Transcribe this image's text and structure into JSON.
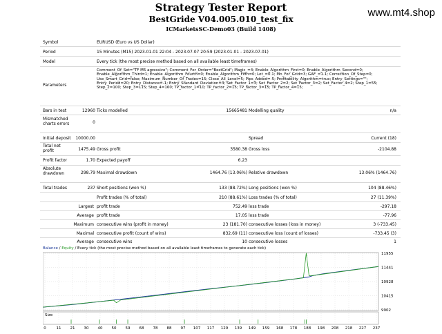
{
  "header": {
    "title": "Strategy Tester Report",
    "ea": "BestGride V04.005.010_test_fix",
    "server": "ICMarketsSC-Demo03 (Build 1408)",
    "site": "www.mt4.shop"
  },
  "info": {
    "symbol_label": "Symbol",
    "symbol_value": "EURUSD (Euro vs US Dollar)",
    "period_label": "Period",
    "period_value": "15 Minutes (M15) 2023.01.01 22:04 - 2023.07.07 20:59 (2023.01.01 - 2023.07.01)",
    "model_label": "Model",
    "model_value": "Every tick (the most precise method based on all available least timeframes)",
    "params_label": "Parameters",
    "params_value": "Comment_Of_Set=\"TF M5 agressive\"; Comment_For_Order=\"BestGrid\"; Magic_=4; Enable_Algorithm_First=0; Enable_Algorithm_Second=0; Enable_Algorithm_Third=1; Enable_Algorithm_Fourth=0; Enable_Algorithm_Fifth=0; Lot_=0.1; Mn_For_Grid=3; GAF_=1.1; Correction_Of_Step=0; Use_Smart_Grid=false; Maximum_Number_Of_Trades=15; Close_All_Level=5; Pips_Added=-5; Profitability_Algorithm=true; Entry_Settings=\"\"; Entry_Period=20; Entry_Distance=-1; Entry_Standard_Deviation=3; Set_Factor_1=3; Set_Factor_2=2; Set_Factor_3=2; Set_Factor_4=2; Step_1=55; Step_2=100; Step_3=115; Step_4=160; TP_factor_1=10; TP_factor_2=15; TP_factor_3=15; TP_factor_4=15;",
    "bars_label": "Bars in test",
    "bars_value": "12960",
    "ticks_label": "Ticks modelled",
    "ticks_value": "15665481",
    "quality_label": "Modelling quality",
    "quality_value": "n/a",
    "mismatch_label": "Mismatched charts errors",
    "mismatch_value": "0"
  },
  "stats": {
    "deposit_label": "Initial deposit",
    "deposit_value": "10000.00",
    "spread_label": "Spread",
    "spread_value": "Current (18)",
    "netprofit_label": "Total net profit",
    "netprofit_value": "1475.49",
    "grossprofit_label": "Gross profit",
    "grossprofit_value": "3580.38",
    "grossloss_label": "Gross loss",
    "grossloss_value": "-2104.88",
    "pf_label": "Profit factor",
    "pf_value": "1.70",
    "payoff_label": "Expected payoff",
    "payoff_value": "6.23",
    "absdd_label": "Absolute drawdown",
    "absdd_value": "298.79",
    "maxdd_label": "Maximal drawdown",
    "maxdd_value": "1464.76 (13.06%)",
    "reldd_label": "Relative drawdown",
    "reldd_value": "13.06% (1464.76)",
    "trades_label": "Total trades",
    "trades_value": "237",
    "short_label": "Short positions (won %)",
    "short_value": "133 (88.72%)",
    "long_label": "Long positions (won %)",
    "long_value": "104 (88.46%)",
    "pt_label": "Profit trades (% of total)",
    "pt_value": "210 (88.61%)",
    "lt_label": "Loss trades (% of total)",
    "lt_value": "27 (11.39%)",
    "largest_label": "Largest",
    "lpt_label": "profit trade",
    "lpt_value": "752.49",
    "llt_label": "loss trade",
    "llt_value": "-297.18",
    "average_label": "Average",
    "apt_label": "profit trade",
    "apt_value": "17.05",
    "alt_label": "loss trade",
    "alt_value": "-77.96",
    "maximum_label": "Maximum",
    "mcw_label": "consecutive wins (profit in money)",
    "mcw_value": "23 (181.70)",
    "mcl_label": "consecutive losses (loss in money)",
    "mcl_value": "3 (-733.45)",
    "maximal_label": "Maximal",
    "mcp_label": "consecutive profit (count of wins)",
    "mcp_value": "832.69 (11)",
    "mcloss_label": "consecutive loss (count of losses)",
    "mcloss_value": "-733.45 (3)",
    "average2_label": "Average",
    "acw_label": "consecutive wins",
    "acw_value": "10",
    "acl_label": "consecutive losses",
    "acl_value": "1"
  },
  "chart_legend": {
    "balance": "Balance",
    "sep": " / ",
    "equity": "Equity",
    "rest": " / Every tick (the most precise method based on all available least timeframes to generate each tick)",
    "size": "Size"
  },
  "chart_data": {
    "type": "line",
    "x_ticks": [
      "0",
      "11",
      "21",
      "30",
      "40",
      "50",
      "59",
      "68",
      "78",
      "88",
      "97",
      "107",
      "117",
      "129",
      "139",
      "149",
      "159",
      "168",
      "178",
      "188",
      "198",
      "208",
      "218",
      "227",
      "237"
    ],
    "y_ticks": [
      "11955",
      "11441",
      "10928",
      "10415",
      "9902"
    ],
    "ylim": [
      9902,
      11955
    ],
    "xlim": [
      0,
      237
    ],
    "series": [
      {
        "name": "Balance",
        "x": [
          0,
          20,
          40,
          59,
          78,
          97,
          117,
          139,
          159,
          178,
          188,
          191,
          198,
          218,
          237
        ],
        "y": [
          10000,
          10090,
          10200,
          10310,
          10420,
          10540,
          10660,
          10780,
          10900,
          11020,
          11100,
          11150,
          11210,
          11350,
          11475
        ]
      },
      {
        "name": "Equity",
        "x": [
          0,
          50,
          52,
          55,
          100,
          140,
          184,
          186,
          188,
          191,
          237
        ],
        "y": [
          10000,
          10250,
          10160,
          10260,
          10540,
          10790,
          11060,
          11960,
          11140,
          11150,
          11475
        ]
      }
    ],
    "colors": {
      "balance": "#1f3c9b",
      "equity": "#2a9a2a",
      "grid": "#d0d0d0"
    }
  }
}
